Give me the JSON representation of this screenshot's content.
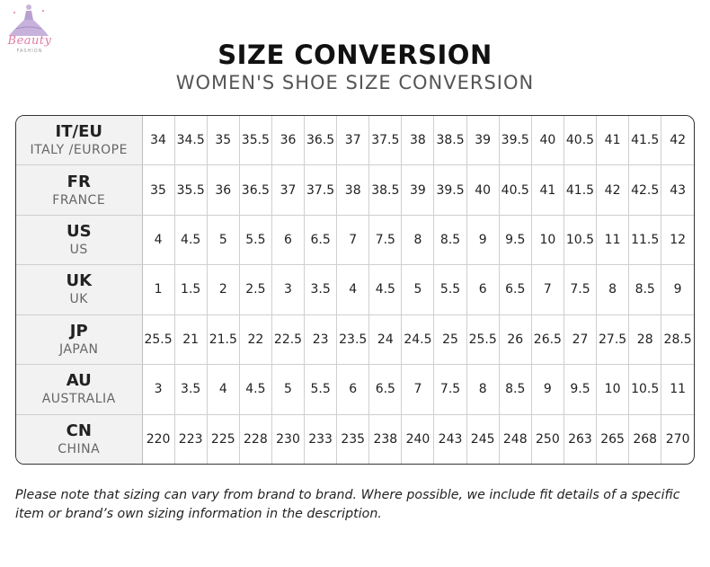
{
  "logo": {
    "text": "Beauty",
    "sub": "FASHION"
  },
  "title": "SIZE CONVERSION",
  "subtitle": "WOMEN'S SHOE SIZE CONVERSION",
  "rows": [
    {
      "code": "IT/EU",
      "name": "ITALY /EUROPE",
      "values": [
        "34",
        "34.5",
        "35",
        "35.5",
        "36",
        "36.5",
        "37",
        "37.5",
        "38",
        "38.5",
        "39",
        "39.5",
        "40",
        "40.5",
        "41",
        "41.5",
        "42"
      ]
    },
    {
      "code": "FR",
      "name": "FRANCE",
      "values": [
        "35",
        "35.5",
        "36",
        "36.5",
        "37",
        "37.5",
        "38",
        "38.5",
        "39",
        "39.5",
        "40",
        "40.5",
        "41",
        "41.5",
        "42",
        "42.5",
        "43"
      ]
    },
    {
      "code": "US",
      "name": "US",
      "values": [
        "4",
        "4.5",
        "5",
        "5.5",
        "6",
        "6.5",
        "7",
        "7.5",
        "8",
        "8.5",
        "9",
        "9.5",
        "10",
        "10.5",
        "11",
        "11.5",
        "12"
      ]
    },
    {
      "code": "UK",
      "name": "UK",
      "values": [
        "1",
        "1.5",
        "2",
        "2.5",
        "3",
        "3.5",
        "4",
        "4.5",
        "5",
        "5.5",
        "6",
        "6.5",
        "7",
        "7.5",
        "8",
        "8.5",
        "9"
      ]
    },
    {
      "code": "JP",
      "name": "JAPAN",
      "values": [
        "25.5",
        "21",
        "21.5",
        "22",
        "22.5",
        "23",
        "23.5",
        "24",
        "24.5",
        "25",
        "25.5",
        "26",
        "26.5",
        "27",
        "27.5",
        "28",
        "28.5"
      ]
    },
    {
      "code": "AU",
      "name": "AUSTRALIA",
      "values": [
        "3",
        "3.5",
        "4",
        "4.5",
        "5",
        "5.5",
        "6",
        "6.5",
        "7",
        "7.5",
        "8",
        "8.5",
        "9",
        "9.5",
        "10",
        "10.5",
        "11"
      ]
    },
    {
      "code": "CN",
      "name": "CHINA",
      "values": [
        "220",
        "223",
        "225",
        "228",
        "230",
        "233",
        "235",
        "238",
        "240",
        "243",
        "245",
        "248",
        "250",
        "263",
        "265",
        "268",
        "270"
      ]
    }
  ],
  "note": "Please note that sizing can vary from brand to brand. Where possible, we include fit details of a specific item or brand’s own sizing information in the description."
}
